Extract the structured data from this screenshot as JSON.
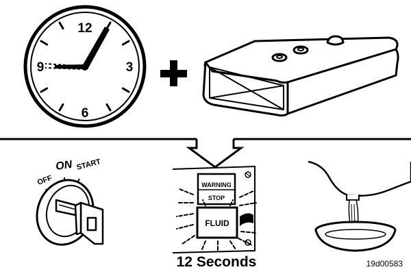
{
  "clock": {
    "numerals": {
      "n12": "12",
      "n3": "3",
      "n6": "6",
      "n9": "9"
    }
  },
  "plus_sign": "+",
  "ignition": {
    "off_label": "OFF",
    "on_label": "ON",
    "start_label": "START"
  },
  "panel": {
    "warning_label": "WARNING",
    "stop_label": "STOP",
    "fluid_label": "FLUID"
  },
  "duration_caption": "12 Seconds",
  "figure_code": "19d00583"
}
